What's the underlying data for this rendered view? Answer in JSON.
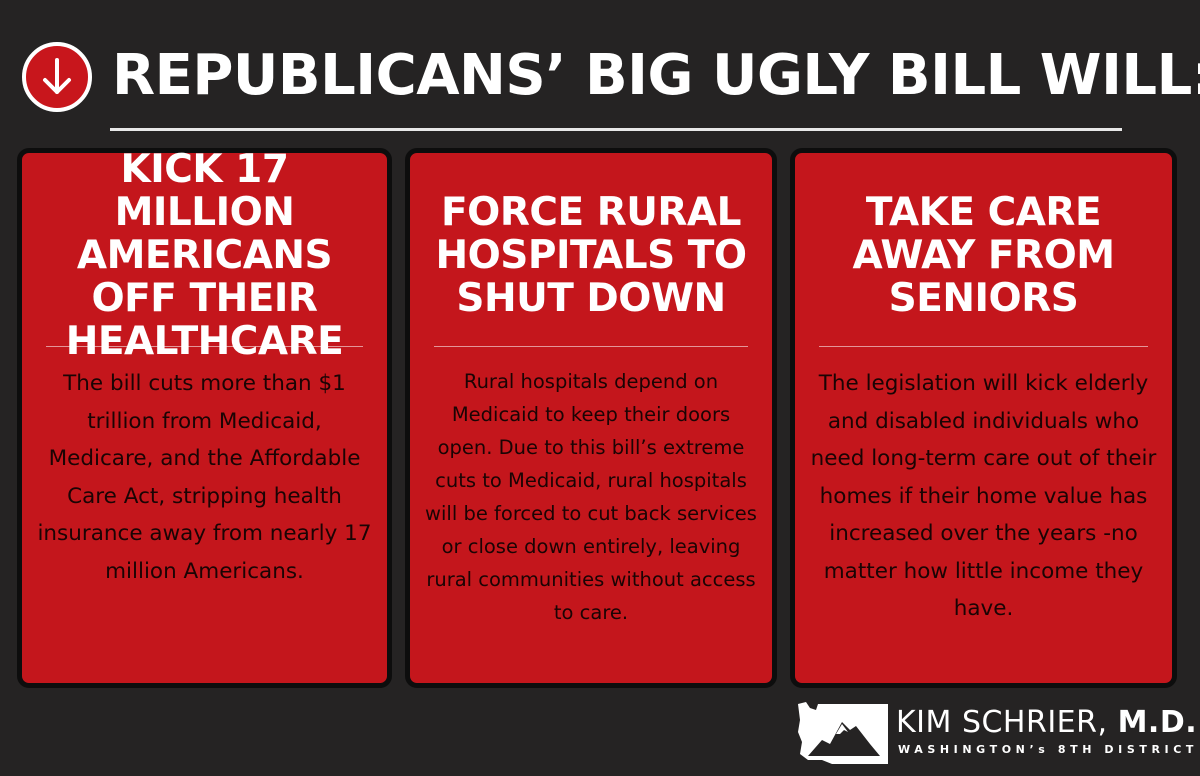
{
  "headline": "REPUBLICANS’ BIG UGLY BILL WILL:",
  "colors": {
    "background": "#252323",
    "card_red": "#c4161c",
    "badge_red": "#c8161c",
    "text_white": "#ffffff"
  },
  "icons": {
    "badge": "down-arrow-icon",
    "logo": "washington-state-map-icon"
  },
  "cards": [
    {
      "title": "KICK 17 MILLION AMERICANS OFF THEIR HEALTHCARE",
      "body": "The bill cuts more than $1 trillion from Medicaid, Medicare, and the Affordable Care Act, stripping health insurance away from nearly 17 million Americans."
    },
    {
      "title": "FORCE RURAL HOSPITALS TO SHUT DOWN",
      "body": "Rural hospitals depend on Medicaid to keep their doors open. Due to this bill’s extreme cuts to Medicaid, rural hospitals will be forced to cut back services or close down entirely, leaving rural communities without access to care."
    },
    {
      "title": "TAKE CARE AWAY FROM SENIORS",
      "body": "The legislation will kick elderly and disabled individuals who need long-term care out of their homes if their home value has increased over the years -no matter how little income they have."
    }
  ],
  "logo": {
    "name": "KIM SCHRIER,",
    "credential": "M.D.",
    "district": "WASHINGTON’s 8TH DISTRICT"
  }
}
